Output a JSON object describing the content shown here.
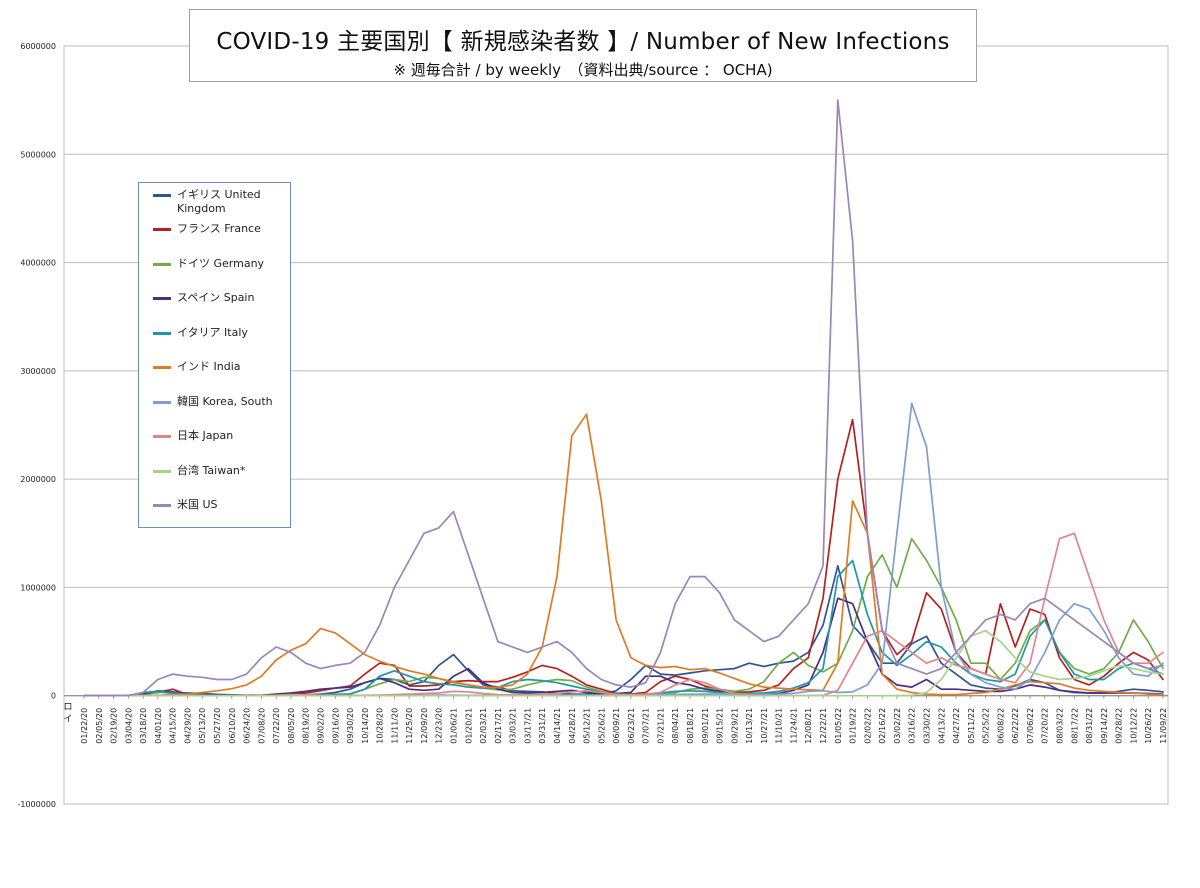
{
  "chart_data": {
    "type": "line",
    "title": "COVID-19 主要国別【 新規感染者数 】/ Number of New Infections",
    "subtitle": "※ 週毎合計 / by weekly　（資料出典/source ： OCHA)",
    "xlabel": "",
    "ylabel": "",
    "ylim": [
      -1000000,
      6000000
    ],
    "yticks": [
      -1000000,
      0,
      1000000,
      2000000,
      3000000,
      4000000,
      5000000,
      6000000
    ],
    "grid": true,
    "legend_position": "left",
    "x_first_label": "ロ\nイ",
    "x": [
      "01/22/20",
      "02/05/20",
      "02/19/20",
      "03/04/20",
      "03/18/20",
      "04/01/20",
      "04/15/20",
      "04/29/20",
      "05/13/20",
      "05/27/20",
      "06/10/20",
      "06/24/20",
      "07/08/20",
      "07/22/20",
      "08/05/20",
      "08/19/20",
      "09/02/20",
      "09/16/20",
      "09/30/20",
      "10/14/20",
      "10/28/20",
      "11/11/20",
      "11/25/20",
      "12/09/20",
      "12/23/20",
      "01/06/21",
      "01/20/21",
      "02/03/21",
      "02/17/21",
      "03/03/21",
      "03/17/21",
      "03/31/21",
      "04/14/21",
      "04/28/21",
      "05/12/21",
      "05/26/21",
      "06/09/21",
      "06/23/21",
      "07/07/21",
      "07/21/21",
      "08/04/21",
      "08/18/21",
      "09/01/21",
      "09/15/21",
      "09/29/21",
      "10/13/21",
      "10/27/21",
      "11/10/21",
      "11/24/21",
      "12/08/21",
      "12/22/21",
      "01/05/22",
      "01/19/22",
      "02/02/22",
      "02/16/22",
      "03/02/22",
      "03/16/22",
      "03/30/22",
      "04/13/22",
      "04/27/22",
      "05/11/22",
      "05/25/22",
      "06/08/22",
      "06/22/22",
      "07/06/22",
      "07/20/22",
      "08/03/22",
      "08/17/22",
      "08/31/22",
      "09/14/22",
      "09/28/22",
      "10/12/22",
      "10/26/22",
      "11/09/22"
    ],
    "series": [
      {
        "name": "イギリス United Kingdom",
        "color": "#2f5597",
        "values": [
          0,
          0,
          0,
          0,
          5000,
          35000,
          30000,
          25000,
          20000,
          12000,
          8000,
          5000,
          4000,
          5000,
          6000,
          8000,
          15000,
          30000,
          60000,
          120000,
          160000,
          150000,
          100000,
          130000,
          280000,
          380000,
          230000,
          100000,
          80000,
          45000,
          40000,
          35000,
          22000,
          15000,
          14000,
          18000,
          45000,
          150000,
          280000,
          200000,
          190000,
          210000,
          230000,
          240000,
          250000,
          300000,
          270000,
          300000,
          320000,
          400000,
          650000,
          1200000,
          650000,
          500000,
          300000,
          300000,
          480000,
          550000,
          300000,
          200000,
          100000,
          70000,
          60000,
          90000,
          150000,
          120000,
          50000,
          30000,
          25000,
          25000,
          40000,
          60000,
          50000,
          35000
        ]
      },
      {
        "name": "フランス France",
        "color": "#b22222",
        "values": [
          0,
          0,
          0,
          0,
          20000,
          30000,
          60000,
          10000,
          5000,
          3000,
          3000,
          4000,
          5000,
          6000,
          12000,
          25000,
          45000,
          70000,
          90000,
          200000,
          300000,
          280000,
          90000,
          90000,
          100000,
          130000,
          140000,
          130000,
          130000,
          170000,
          220000,
          280000,
          250000,
          180000,
          100000,
          60000,
          20000,
          15000,
          30000,
          130000,
          180000,
          150000,
          90000,
          50000,
          30000,
          35000,
          50000,
          100000,
          250000,
          350000,
          900000,
          2000000,
          2550000,
          1500000,
          600000,
          380000,
          500000,
          950000,
          800000,
          400000,
          250000,
          200000,
          850000,
          450000,
          800000,
          750000,
          350000,
          150000,
          100000,
          180000,
          300000,
          400000,
          330000,
          150000
        ]
      },
      {
        "name": "ドイツ Germany",
        "color": "#70ad47",
        "values": [
          0,
          0,
          0,
          0,
          10000,
          35000,
          20000,
          8000,
          5000,
          3000,
          3000,
          2000,
          3000,
          4000,
          6000,
          8000,
          9000,
          12000,
          18000,
          60000,
          110000,
          150000,
          130000,
          170000,
          160000,
          130000,
          100000,
          70000,
          55000,
          60000,
          100000,
          130000,
          150000,
          140000,
          80000,
          40000,
          10000,
          5000,
          5000,
          12000,
          30000,
          60000,
          70000,
          60000,
          40000,
          60000,
          130000,
          300000,
          400000,
          280000,
          220000,
          300000,
          600000,
          1100000,
          1300000,
          1000000,
          1450000,
          1250000,
          1000000,
          700000,
          300000,
          300000,
          150000,
          300000,
          600000,
          700000,
          400000,
          250000,
          200000,
          250000,
          400000,
          700000,
          500000,
          250000
        ]
      },
      {
        "name": "スペイン Spain",
        "color": "#4b2f7f",
        "values": [
          0,
          0,
          0,
          0,
          15000,
          45000,
          35000,
          15000,
          6000,
          3000,
          3000,
          3000,
          5000,
          15000,
          25000,
          40000,
          60000,
          70000,
          80000,
          120000,
          160000,
          120000,
          60000,
          50000,
          60000,
          180000,
          250000,
          120000,
          60000,
          30000,
          25000,
          30000,
          40000,
          50000,
          30000,
          20000,
          20000,
          30000,
          180000,
          180000,
          120000,
          100000,
          60000,
          40000,
          20000,
          15000,
          15000,
          20000,
          50000,
          100000,
          400000,
          900000,
          850000,
          500000,
          200000,
          100000,
          80000,
          150000,
          60000,
          60000,
          50000,
          40000,
          40000,
          60000,
          100000,
          80000,
          50000,
          35000,
          25000,
          25000,
          25000,
          25000,
          20000,
          15000
        ]
      },
      {
        "name": "イタリア Italy",
        "color": "#2196a6",
        "values": [
          0,
          0,
          0,
          0,
          30000,
          40000,
          25000,
          12000,
          6000,
          3000,
          2000,
          1500,
          1500,
          2000,
          3000,
          5000,
          9000,
          10000,
          15000,
          60000,
          180000,
          230000,
          180000,
          130000,
          110000,
          100000,
          80000,
          70000,
          75000,
          130000,
          150000,
          140000,
          120000,
          90000,
          60000,
          30000,
          15000,
          10000,
          10000,
          25000,
          40000,
          45000,
          40000,
          30000,
          20000,
          20000,
          25000,
          40000,
          70000,
          120000,
          250000,
          1100000,
          1250000,
          750000,
          400000,
          280000,
          380000,
          500000,
          450000,
          300000,
          200000,
          150000,
          130000,
          200000,
          550000,
          700000,
          400000,
          200000,
          150000,
          150000,
          250000,
          300000,
          250000,
          200000
        ]
      },
      {
        "name": "インド India",
        "color": "#e07b24",
        "values": [
          0,
          0,
          0,
          0,
          1000,
          5000,
          8000,
          15000,
          30000,
          45000,
          65000,
          100000,
          180000,
          330000,
          420000,
          480000,
          620000,
          580000,
          480000,
          380000,
          320000,
          270000,
          230000,
          200000,
          160000,
          120000,
          100000,
          80000,
          75000,
          100000,
          200000,
          450000,
          1100000,
          2400000,
          2600000,
          1800000,
          700000,
          350000,
          280000,
          260000,
          270000,
          240000,
          250000,
          210000,
          160000,
          110000,
          80000,
          70000,
          60000,
          55000,
          50000,
          300000,
          1800000,
          1500000,
          200000,
          60000,
          30000,
          15000,
          10000,
          10000,
          20000,
          30000,
          60000,
          100000,
          130000,
          120000,
          110000,
          70000,
          50000,
          40000,
          30000,
          25000,
          15000,
          10000
        ]
      },
      {
        "name": "韓国 Korea, South",
        "color": "#7f9ecf",
        "values": [
          0,
          0,
          0,
          5000,
          3000,
          1500,
          500,
          300,
          200,
          300,
          400,
          400,
          500,
          500,
          600,
          1500,
          1500,
          800,
          500,
          600,
          800,
          1000,
          2500,
          5000,
          7000,
          5000,
          3000,
          3000,
          3000,
          3000,
          3000,
          3500,
          4500,
          4500,
          4500,
          4000,
          3500,
          4000,
          8000,
          12000,
          12000,
          14000,
          15000,
          16000,
          17000,
          14000,
          12000,
          15000,
          22000,
          40000,
          45000,
          30000,
          35000,
          100000,
          300000,
          1500000,
          2700000,
          2300000,
          1000000,
          400000,
          200000,
          120000,
          80000,
          60000,
          150000,
          400000,
          700000,
          850000,
          800000,
          600000,
          350000,
          200000,
          180000,
          300000
        ]
      },
      {
        "name": "日本 Japan",
        "color": "#e0868b",
        "values": [
          0,
          0,
          0,
          0,
          3000,
          5000,
          4500,
          1500,
          300,
          300,
          500,
          1000,
          2500,
          5000,
          10000,
          8000,
          4000,
          3000,
          3000,
          3500,
          6000,
          10000,
          15000,
          20000,
          25000,
          40000,
          35000,
          20000,
          10000,
          8000,
          8000,
          10000,
          20000,
          35000,
          45000,
          30000,
          12000,
          10000,
          15000,
          30000,
          100000,
          150000,
          120000,
          60000,
          20000,
          5000,
          2000,
          1000,
          1000,
          1000,
          3000,
          50000,
          300000,
          550000,
          600000,
          500000,
          400000,
          300000,
          350000,
          280000,
          250000,
          200000,
          150000,
          120000,
          300000,
          900000,
          1450000,
          1500000,
          1100000,
          700000,
          400000,
          300000,
          300000,
          400000
        ]
      },
      {
        "name": "台湾 Taiwan*",
        "color": "#a9d18e",
        "values": [
          0,
          0,
          0,
          0,
          100,
          200,
          100,
          0,
          0,
          0,
          0,
          0,
          0,
          0,
          0,
          0,
          0,
          0,
          0,
          0,
          0,
          0,
          0,
          0,
          0,
          0,
          0,
          0,
          0,
          0,
          0,
          0,
          0,
          0,
          1000,
          3000,
          2000,
          500,
          200,
          100,
          0,
          0,
          0,
          0,
          0,
          0,
          0,
          0,
          0,
          0,
          0,
          0,
          0,
          0,
          500,
          1000,
          3000,
          30000,
          150000,
          350000,
          550000,
          600000,
          500000,
          350000,
          220000,
          180000,
          150000,
          160000,
          180000,
          230000,
          280000,
          250000,
          220000,
          200000
        ]
      },
      {
        "name": "米国 US",
        "color": "#9a86b8",
        "values": [
          0,
          0,
          0,
          2000,
          30000,
          150000,
          200000,
          180000,
          170000,
          150000,
          150000,
          200000,
          350000,
          450000,
          400000,
          300000,
          250000,
          280000,
          300000,
          400000,
          650000,
          1000000,
          1250000,
          1500000,
          1550000,
          1700000,
          1300000,
          900000,
          500000,
          450000,
          400000,
          450000,
          500000,
          400000,
          250000,
          150000,
          100000,
          80000,
          120000,
          400000,
          850000,
          1100000,
          1100000,
          950000,
          700000,
          600000,
          500000,
          550000,
          700000,
          850000,
          1200000,
          5500000,
          4200000,
          1500000,
          600000,
          300000,
          250000,
          200000,
          250000,
          400000,
          550000,
          700000,
          750000,
          700000,
          850000,
          900000,
          800000,
          700000,
          600000,
          500000,
          400000,
          300000,
          250000,
          280000
        ]
      }
    ]
  }
}
